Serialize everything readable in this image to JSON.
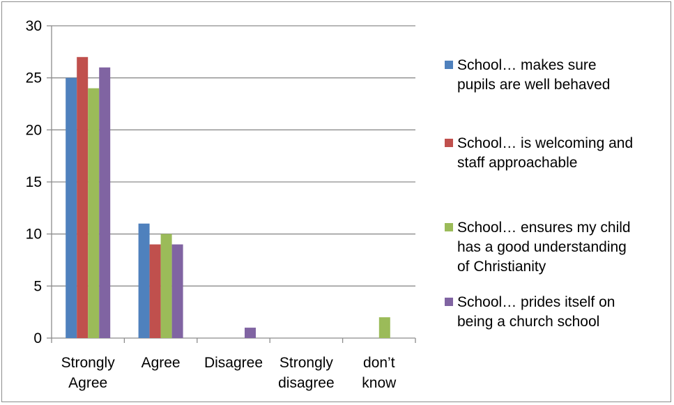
{
  "chart_data": {
    "type": "bar",
    "categories": [
      [
        "Strongly",
        "Agree"
      ],
      [
        "Agree"
      ],
      [
        "Disagree"
      ],
      [
        "Strongly",
        "disagree"
      ],
      [
        "don’t",
        "know"
      ]
    ],
    "series": [
      {
        "name": [
          "School… makes sure",
          "pupils are well behaved"
        ],
        "color": "#4f81bd",
        "values": [
          25,
          11,
          0,
          0,
          0
        ]
      },
      {
        "name": [
          "School… is welcoming and",
          "staff approachable"
        ],
        "color": "#c0504d",
        "values": [
          27,
          9,
          0,
          0,
          0
        ]
      },
      {
        "name": [
          "School… ensures my child",
          "has a good understanding",
          "of Christianity"
        ],
        "color": "#9bbb59",
        "values": [
          24,
          10,
          0,
          0,
          2
        ]
      },
      {
        "name": [
          "School… prides itself on",
          "being a church school"
        ],
        "color": "#8064a2",
        "values": [
          26,
          9,
          1,
          0,
          0
        ]
      }
    ],
    "ylim": [
      0,
      30
    ],
    "yticks": [
      0,
      5,
      10,
      15,
      20,
      25,
      30
    ],
    "grid": true,
    "legend": "right"
  }
}
